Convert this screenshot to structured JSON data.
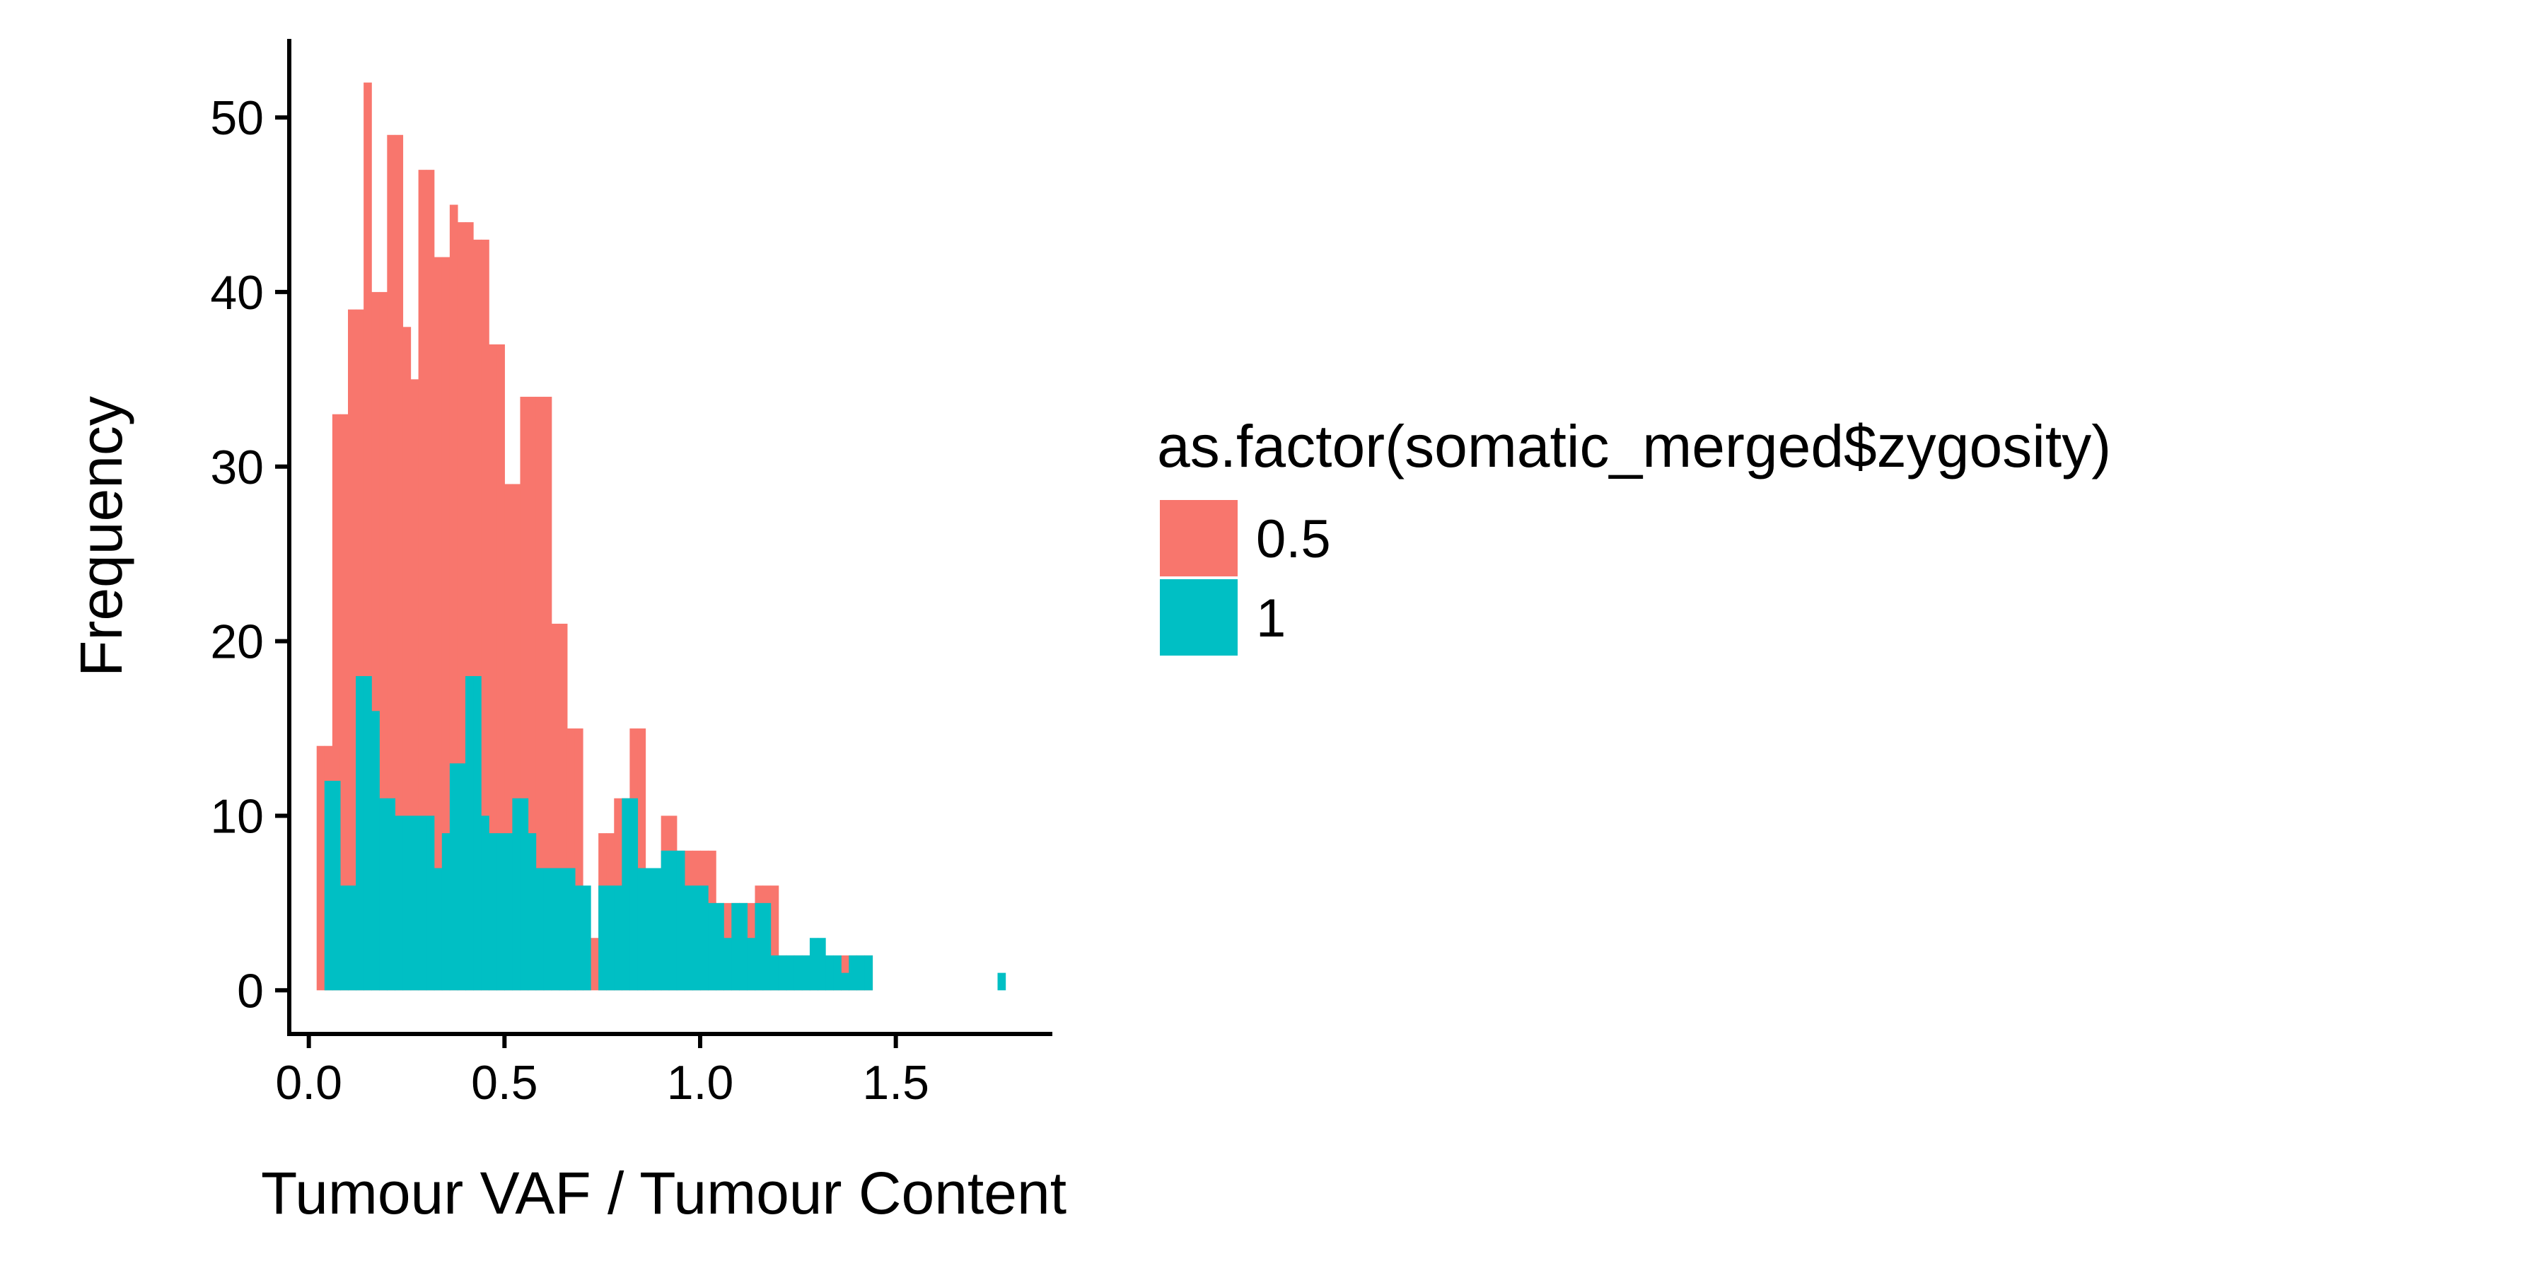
{
  "chart_data": {
    "type": "bar",
    "subtype": "histogram",
    "stacked": false,
    "overlaid": true,
    "xlabel": "Tumour VAF / Tumour Content",
    "ylabel": "Frequency",
    "xlim": [
      -0.05,
      1.9
    ],
    "ylim": [
      -2.5,
      54.5
    ],
    "xticks": [
      0.0,
      0.5,
      1.0,
      1.5
    ],
    "xtick_labels": [
      "0.0",
      "0.5",
      "1.0",
      "1.5"
    ],
    "yticks": [
      0,
      10,
      20,
      30,
      40,
      50
    ],
    "ytick_labels": [
      "0",
      "10",
      "20",
      "30",
      "40",
      "50"
    ],
    "grid": false,
    "bin_width": 0.02,
    "legend": {
      "title": "as.factor(somatic_merged$zygosity)",
      "position": "right",
      "entries": [
        "0.5",
        "1"
      ]
    },
    "series": [
      {
        "name": "0.5",
        "color": "#F8766D",
        "bins": [
          [
            0.02,
            14
          ],
          [
            0.04,
            14
          ],
          [
            0.06,
            33
          ],
          [
            0.08,
            33
          ],
          [
            0.1,
            39
          ],
          [
            0.12,
            39
          ],
          [
            0.14,
            52
          ],
          [
            0.16,
            40
          ],
          [
            0.18,
            40
          ],
          [
            0.2,
            49
          ],
          [
            0.22,
            49
          ],
          [
            0.24,
            38
          ],
          [
            0.26,
            35
          ],
          [
            0.28,
            47
          ],
          [
            0.3,
            47
          ],
          [
            0.32,
            42
          ],
          [
            0.34,
            42
          ],
          [
            0.36,
            45
          ],
          [
            0.38,
            44
          ],
          [
            0.4,
            44
          ],
          [
            0.42,
            43
          ],
          [
            0.44,
            43
          ],
          [
            0.46,
            37
          ],
          [
            0.48,
            37
          ],
          [
            0.5,
            29
          ],
          [
            0.52,
            29
          ],
          [
            0.54,
            34
          ],
          [
            0.56,
            34
          ],
          [
            0.58,
            34
          ],
          [
            0.6,
            34
          ],
          [
            0.62,
            21
          ],
          [
            0.64,
            21
          ],
          [
            0.66,
            15
          ],
          [
            0.68,
            15
          ],
          [
            0.7,
            3
          ],
          [
            0.72,
            3
          ],
          [
            0.74,
            9
          ],
          [
            0.76,
            9
          ],
          [
            0.78,
            11
          ],
          [
            0.8,
            11
          ],
          [
            0.82,
            15
          ],
          [
            0.84,
            15
          ],
          [
            0.86,
            5
          ],
          [
            0.88,
            5
          ],
          [
            0.9,
            10
          ],
          [
            0.92,
            10
          ],
          [
            0.94,
            8
          ],
          [
            0.96,
            8
          ],
          [
            0.98,
            8
          ],
          [
            1.0,
            8
          ],
          [
            1.02,
            8
          ],
          [
            1.04,
            5
          ],
          [
            1.06,
            5
          ],
          [
            1.08,
            5
          ],
          [
            1.1,
            5
          ],
          [
            1.12,
            5
          ],
          [
            1.14,
            6
          ],
          [
            1.16,
            6
          ],
          [
            1.18,
            6
          ],
          [
            1.2,
            2
          ],
          [
            1.22,
            2
          ],
          [
            1.24,
            2
          ],
          [
            1.26,
            2
          ],
          [
            1.28,
            2
          ],
          [
            1.3,
            1
          ],
          [
            1.32,
            1
          ],
          [
            1.34,
            1
          ],
          [
            1.36,
            2
          ],
          [
            1.38,
            2
          ],
          [
            1.4,
            2
          ],
          [
            1.42,
            2
          ]
        ]
      },
      {
        "name": "1",
        "color": "#00BFC4",
        "bins": [
          [
            0.02,
            0
          ],
          [
            0.04,
            12
          ],
          [
            0.06,
            12
          ],
          [
            0.08,
            6
          ],
          [
            0.1,
            6
          ],
          [
            0.12,
            18
          ],
          [
            0.14,
            18
          ],
          [
            0.16,
            16
          ],
          [
            0.18,
            11
          ],
          [
            0.2,
            11
          ],
          [
            0.22,
            10
          ],
          [
            0.24,
            10
          ],
          [
            0.26,
            10
          ],
          [
            0.28,
            10
          ],
          [
            0.3,
            10
          ],
          [
            0.32,
            7
          ],
          [
            0.34,
            9
          ],
          [
            0.36,
            13
          ],
          [
            0.38,
            13
          ],
          [
            0.4,
            18
          ],
          [
            0.42,
            18
          ],
          [
            0.44,
            10
          ],
          [
            0.46,
            9
          ],
          [
            0.48,
            9
          ],
          [
            0.5,
            9
          ],
          [
            0.52,
            11
          ],
          [
            0.54,
            11
          ],
          [
            0.56,
            9
          ],
          [
            0.58,
            7
          ],
          [
            0.6,
            7
          ],
          [
            0.62,
            7
          ],
          [
            0.64,
            7
          ],
          [
            0.66,
            7
          ],
          [
            0.68,
            6
          ],
          [
            0.7,
            6
          ],
          [
            0.72,
            0
          ],
          [
            0.74,
            6
          ],
          [
            0.76,
            6
          ],
          [
            0.78,
            6
          ],
          [
            0.8,
            11
          ],
          [
            0.82,
            11
          ],
          [
            0.84,
            7
          ],
          [
            0.86,
            7
          ],
          [
            0.88,
            7
          ],
          [
            0.9,
            8
          ],
          [
            0.92,
            8
          ],
          [
            0.94,
            8
          ],
          [
            0.96,
            6
          ],
          [
            0.98,
            6
          ],
          [
            1.0,
            6
          ],
          [
            1.02,
            5
          ],
          [
            1.04,
            5
          ],
          [
            1.06,
            3
          ],
          [
            1.08,
            5
          ],
          [
            1.1,
            5
          ],
          [
            1.12,
            3
          ],
          [
            1.14,
            5
          ],
          [
            1.16,
            5
          ],
          [
            1.18,
            2
          ],
          [
            1.2,
            2
          ],
          [
            1.22,
            2
          ],
          [
            1.24,
            2
          ],
          [
            1.26,
            2
          ],
          [
            1.28,
            3
          ],
          [
            1.3,
            3
          ],
          [
            1.32,
            2
          ],
          [
            1.34,
            2
          ],
          [
            1.36,
            1
          ],
          [
            1.38,
            2
          ],
          [
            1.4,
            2
          ],
          [
            1.42,
            2
          ],
          [
            1.76,
            1
          ]
        ]
      }
    ]
  }
}
